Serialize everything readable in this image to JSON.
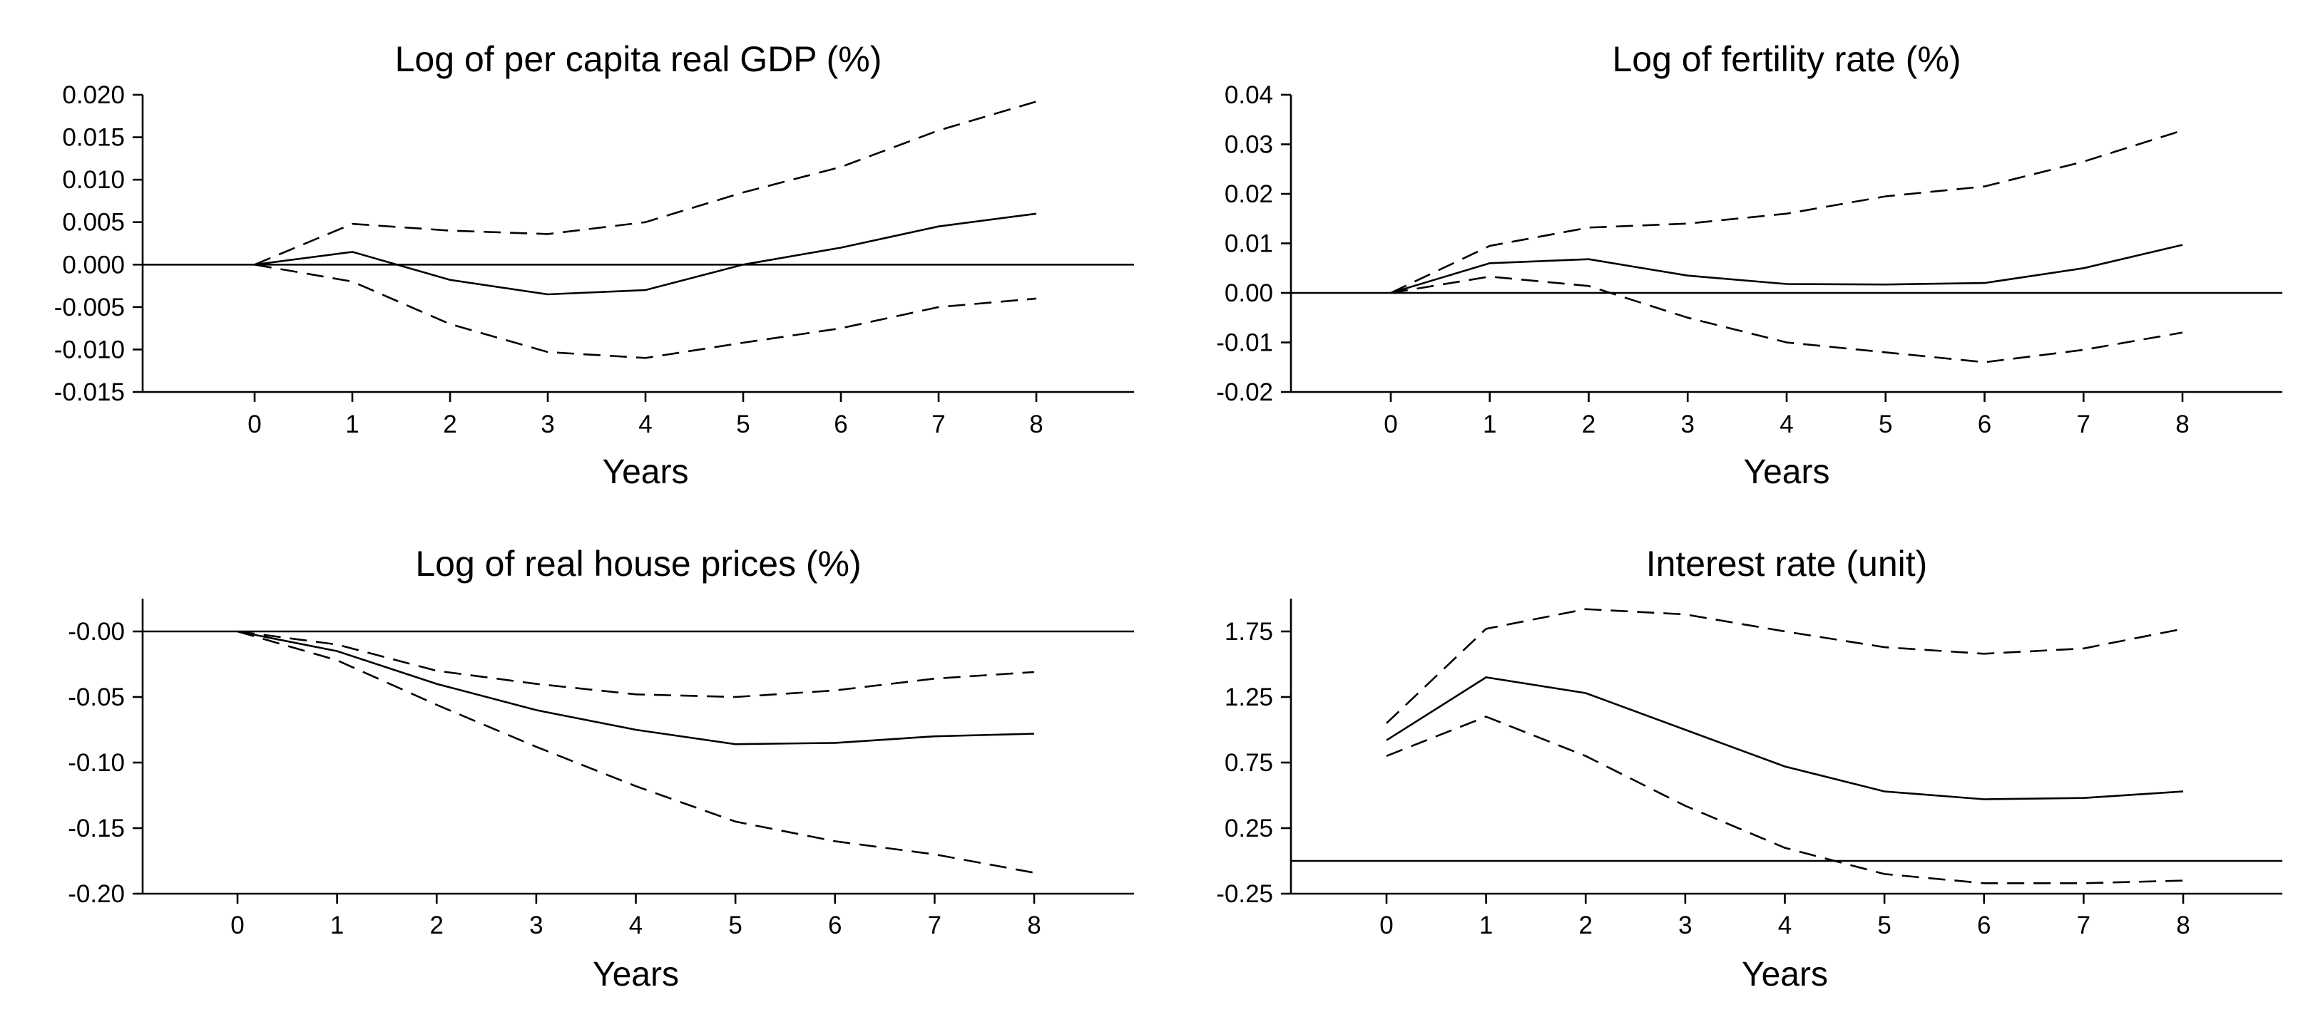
{
  "chart_data": [
    {
      "type": "line",
      "title": "Log of per capita real GDP (%)",
      "xlabel": "Years",
      "ylabel": "",
      "x": [
        0,
        1,
        2,
        3,
        4,
        5,
        6,
        7,
        8
      ],
      "ylim": [
        -0.015,
        0.02
      ],
      "yticks": [
        -0.015,
        -0.01,
        -0.005,
        0.0,
        0.005,
        0.01,
        0.015,
        0.02
      ],
      "ytick_labels": [
        "-0.015",
        "-0.010",
        "-0.005",
        "0.000",
        "0.005",
        "0.010",
        "0.015",
        "0.020"
      ],
      "zero_line": 0,
      "series": [
        {
          "name": "response",
          "style": "solid",
          "values": [
            0.0,
            0.0015,
            -0.0018,
            -0.0035,
            -0.003,
            0.0,
            0.002,
            0.0045,
            0.006
          ]
        },
        {
          "name": "upper band",
          "style": "dashed",
          "values": [
            0.0,
            0.0048,
            0.004,
            0.0036,
            0.005,
            0.0085,
            0.0115,
            0.0158,
            0.0192
          ]
        },
        {
          "name": "lower band",
          "style": "dashed",
          "values": [
            0.0,
            -0.002,
            -0.007,
            -0.0103,
            -0.011,
            -0.0092,
            -0.0075,
            -0.005,
            -0.004
          ]
        }
      ]
    },
    {
      "type": "line",
      "title": "Log of fertility rate (%)",
      "xlabel": "Years",
      "ylabel": "",
      "x": [
        0,
        1,
        2,
        3,
        4,
        5,
        6,
        7,
        8
      ],
      "ylim": [
        -0.02,
        0.04
      ],
      "yticks": [
        -0.02,
        -0.01,
        0.0,
        0.01,
        0.02,
        0.03,
        0.04
      ],
      "ytick_labels": [
        "-0.02",
        "-0.01",
        "0.00",
        "0.01",
        "0.02",
        "0.03",
        "0.04"
      ],
      "zero_line": 0,
      "series": [
        {
          "name": "response",
          "style": "solid",
          "values": [
            0.0,
            0.006,
            0.0068,
            0.0035,
            0.0018,
            0.0017,
            0.002,
            0.005,
            0.0097
          ]
        },
        {
          "name": "upper band",
          "style": "dashed",
          "values": [
            0.0,
            0.0095,
            0.0132,
            0.014,
            0.016,
            0.0195,
            0.0215,
            0.0265,
            0.0328
          ]
        },
        {
          "name": "lower band",
          "style": "dashed",
          "values": [
            0.0,
            0.0033,
            0.0014,
            -0.005,
            -0.01,
            -0.012,
            -0.014,
            -0.0115,
            -0.008
          ]
        }
      ]
    },
    {
      "type": "line",
      "title": "Log of real house prices (%)",
      "xlabel": "Years",
      "ylabel": "",
      "x": [
        0,
        1,
        2,
        3,
        4,
        5,
        6,
        7,
        8
      ],
      "ylim": [
        -0.2,
        0.025
      ],
      "yticks": [
        -0.2,
        -0.15,
        -0.1,
        -0.05,
        0.0
      ],
      "ytick_labels": [
        "-0.20",
        "-0.15",
        "-0.10",
        "-0.05",
        "-0.00"
      ],
      "zero_line": 0,
      "series": [
        {
          "name": "response",
          "style": "solid",
          "values": [
            0.0,
            -0.015,
            -0.04,
            -0.06,
            -0.075,
            -0.086,
            -0.085,
            -0.08,
            -0.078
          ]
        },
        {
          "name": "upper band",
          "style": "dashed",
          "values": [
            0.0,
            -0.01,
            -0.03,
            -0.04,
            -0.048,
            -0.05,
            -0.045,
            -0.036,
            -0.031
          ]
        },
        {
          "name": "lower band",
          "style": "dashed",
          "values": [
            0.0,
            -0.022,
            -0.056,
            -0.088,
            -0.118,
            -0.145,
            -0.16,
            -0.17,
            -0.184
          ]
        }
      ]
    },
    {
      "type": "line",
      "title": "Interest rate (unit)",
      "xlabel": "Years",
      "ylabel": "",
      "x": [
        0,
        1,
        2,
        3,
        4,
        5,
        6,
        7,
        8
      ],
      "ylim": [
        -0.25,
        2.0
      ],
      "yticks": [
        -0.25,
        0.25,
        0.75,
        1.25,
        1.75
      ],
      "ytick_labels": [
        "-0.25",
        "0.25",
        "0.75",
        "1.25",
        "1.75"
      ],
      "zero_line": 0,
      "series": [
        {
          "name": "response",
          "style": "solid",
          "values": [
            0.92,
            1.4,
            1.28,
            1.0,
            0.72,
            0.53,
            0.47,
            0.48,
            0.53
          ]
        },
        {
          "name": "upper band",
          "style": "dashed",
          "values": [
            1.05,
            1.77,
            1.92,
            1.88,
            1.75,
            1.63,
            1.58,
            1.62,
            1.77
          ]
        },
        {
          "name": "lower band",
          "style": "dashed",
          "values": [
            0.8,
            1.1,
            0.8,
            0.42,
            0.1,
            -0.1,
            -0.17,
            -0.17,
            -0.15
          ]
        }
      ]
    }
  ]
}
